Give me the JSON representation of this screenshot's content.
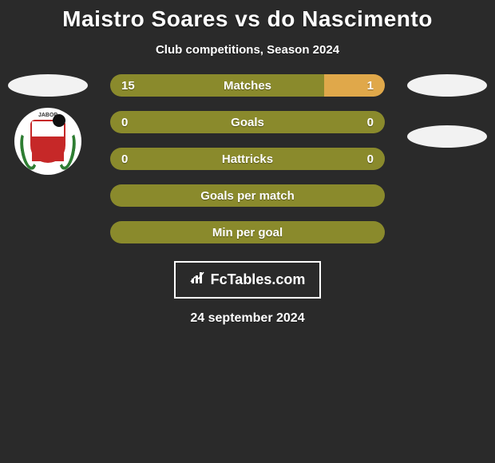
{
  "title": "Maistro Soares vs do Nascimento",
  "subtitle": "Club competitions, Season 2024",
  "date": "24 september 2024",
  "brand": "FcTables.com",
  "colors": {
    "left_bar": "#8a8a2c",
    "right_bar": "#e0a84a",
    "neutral_bar": "#8a8a2c",
    "background": "#2a2a2a",
    "oval": "#f2f2f2"
  },
  "club_left": {
    "name_top": "JABOP",
    "name_bottom": ""
  },
  "rows": [
    {
      "label": "Matches",
      "left_val": "15",
      "right_val": "1",
      "left_pct": 78,
      "right_pct": 22,
      "has_values": true
    },
    {
      "label": "Goals",
      "left_val": "0",
      "right_val": "0",
      "left_pct": 100,
      "right_pct": 0,
      "has_values": true,
      "single_color": true
    },
    {
      "label": "Hattricks",
      "left_val": "0",
      "right_val": "0",
      "left_pct": 100,
      "right_pct": 0,
      "has_values": true,
      "single_color": true
    },
    {
      "label": "Goals per match",
      "left_val": "",
      "right_val": "",
      "left_pct": 100,
      "right_pct": 0,
      "has_values": false,
      "single_color": true
    },
    {
      "label": "Min per goal",
      "left_val": "",
      "right_val": "",
      "left_pct": 100,
      "right_pct": 0,
      "has_values": false,
      "single_color": true
    }
  ]
}
